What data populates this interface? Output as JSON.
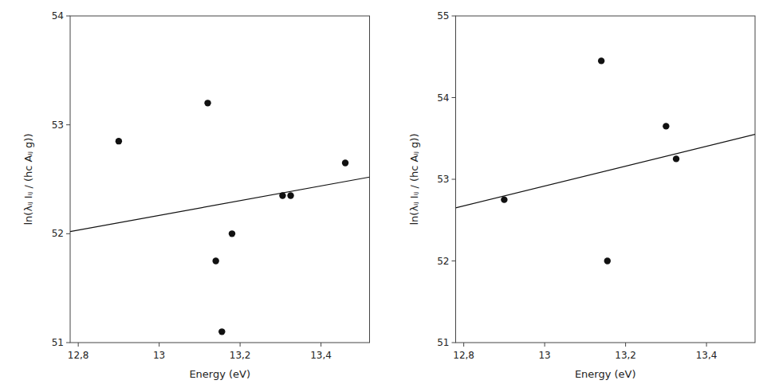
{
  "chart_data": [
    {
      "type": "scatter",
      "x_label": "Energy (eV)",
      "y_label": "ln(λᵢⱼ Iᵢⱼ / (hc Aᵢⱼ g))",
      "xlim": [
        12.78,
        13.52
      ],
      "ylim": [
        51.0,
        54.0
      ],
      "xticks": [
        {
          "value": 12.8,
          "label": "12,8"
        },
        13.0,
        {
          "value": 13.2,
          "label": "13,2"
        },
        {
          "value": 13.4,
          "label": "13,4"
        }
      ],
      "yticks": [
        51,
        52,
        53,
        54
      ],
      "grid": false,
      "series": [
        {
          "type": "line",
          "color": "#111111",
          "x": [
            12.78,
            13.52
          ],
          "values": [
            52.02,
            52.52
          ]
        },
        {
          "type": "scatter",
          "color": "#111111",
          "x": [
            12.9,
            13.12,
            13.14,
            13.155,
            13.18,
            13.305,
            13.325,
            13.46
          ],
          "values": [
            52.85,
            53.2,
            51.75,
            51.1,
            52.0,
            52.35,
            52.35,
            52.65
          ]
        }
      ]
    },
    {
      "type": "scatter",
      "x_label": "Energy (eV)",
      "y_label": "ln(λᵢⱼ Iᵢⱼ / (hc Aᵢⱼ g))",
      "xlim": [
        12.78,
        13.52
      ],
      "ylim": [
        51.0,
        55.0
      ],
      "xticks": [
        {
          "value": 12.8,
          "label": "12,8"
        },
        13.0,
        {
          "value": 13.2,
          "label": "13,2"
        },
        {
          "value": 13.4,
          "label": "13,4"
        }
      ],
      "yticks": [
        51,
        52,
        53,
        54,
        55
      ],
      "grid": false,
      "series": [
        {
          "type": "line",
          "color": "#111111",
          "x": [
            12.78,
            13.52
          ],
          "values": [
            52.65,
            53.55
          ]
        },
        {
          "type": "scatter",
          "color": "#111111",
          "x": [
            12.9,
            13.14,
            13.155,
            13.3,
            13.325
          ],
          "values": [
            52.75,
            54.45,
            52.0,
            53.65,
            53.25
          ]
        }
      ]
    }
  ]
}
